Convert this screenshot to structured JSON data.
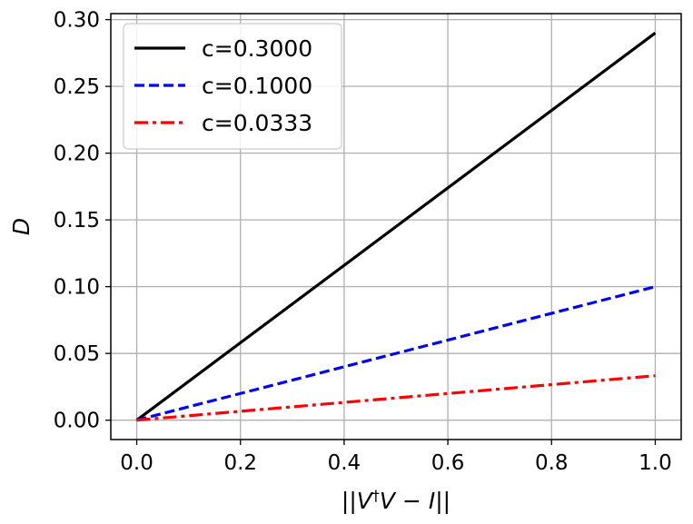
{
  "chart_data": {
    "type": "line",
    "title": "",
    "xlabel_parts": [
      "||",
      "V",
      "†",
      "V",
      " − ",
      "I",
      "||"
    ],
    "ylabel": "D",
    "xlim": [
      -0.05,
      1.05
    ],
    "ylim": [
      -0.0145,
      0.3045
    ],
    "xticks": [
      0.0,
      0.2,
      0.4,
      0.6,
      0.8,
      1.0
    ],
    "xtick_labels": [
      "0.0",
      "0.2",
      "0.4",
      "0.6",
      "0.8",
      "1.0"
    ],
    "yticks": [
      0.0,
      0.05,
      0.1,
      0.15,
      0.2,
      0.25,
      0.3
    ],
    "ytick_labels": [
      "0.00",
      "0.05",
      "0.10",
      "0.15",
      "0.20",
      "0.25",
      "0.30"
    ],
    "grid": true,
    "legend_position": "top-left",
    "x": [
      0.0,
      1.0
    ],
    "series": [
      {
        "name": "c=0.3000",
        "values": [
          0.0,
          0.29
        ],
        "color": "#000000",
        "style": "solid"
      },
      {
        "name": "c=0.1000",
        "values": [
          0.0,
          0.1
        ],
        "color": "#0000ff",
        "style": "dashed"
      },
      {
        "name": "c=0.0333",
        "values": [
          0.0,
          0.0333
        ],
        "color": "#ff0000",
        "style": "dashdot"
      }
    ]
  }
}
